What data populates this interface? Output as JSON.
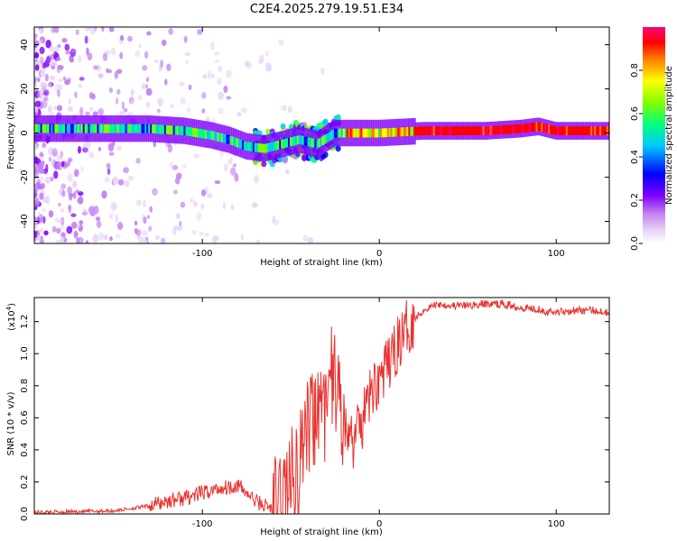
{
  "figure_title": "C2E4.2025.279.19.51.E34",
  "chart_data": [
    {
      "type": "heatmap",
      "title": "C2E4.2025.279.19.51.E34",
      "xlabel": "Height of straight line (km)",
      "ylabel": "Frequency (Hz)",
      "xlim": [
        -195,
        130
      ],
      "ylim": [
        -50,
        48
      ],
      "x_ticks": [
        -100,
        0,
        100
      ],
      "y_ticks": [
        -40,
        -20,
        0,
        20,
        40
      ],
      "colorbar": {
        "label": "Normalized spectral amplitude",
        "range": [
          0,
          1
        ],
        "ticks": [
          0.0,
          0.2,
          0.4,
          0.6,
          0.8
        ],
        "colormap": [
          "#ffffff",
          "#e8d5f7",
          "#c27ff0",
          "#8000ff",
          "#0000ff",
          "#00c8ff",
          "#00ff80",
          "#80ff00",
          "#ffff00",
          "#ff8000",
          "#ff0000",
          "#ff0080"
        ]
      },
      "ridge": {
        "x": [
          -195,
          -160,
          -130,
          -110,
          -95,
          -85,
          -75,
          -65,
          -55,
          -45,
          -35,
          -25,
          -15,
          0,
          25,
          60,
          80,
          90,
          100,
          130
        ],
        "freq_hz": [
          2,
          2,
          2,
          1,
          -1,
          -3,
          -6,
          -7,
          -5,
          -3,
          -5,
          0,
          0,
          0,
          1,
          1,
          2,
          3,
          1,
          1
        ]
      }
    },
    {
      "type": "line",
      "xlabel": "Height of straight line (km)",
      "ylabel": "SNR (10 * v/v)",
      "y_scale_label": "(x10",
      "y_scale_exponent": "4",
      "xlim": [
        -195,
        130
      ],
      "ylim": [
        0,
        1.35
      ],
      "x_ticks": [
        -100,
        0,
        100
      ],
      "y_ticks": [
        0.0,
        0.2,
        0.4,
        0.6,
        0.8,
        1.0,
        1.2
      ],
      "series": [
        {
          "name": "SNR",
          "color": "#e8322e",
          "x": [
            -195,
            -170,
            -150,
            -130,
            -120,
            -110,
            -100,
            -90,
            -80,
            -75,
            -70,
            -60,
            -55,
            -50,
            -45,
            -40,
            -35,
            -30,
            -27,
            -25,
            -22,
            -20,
            -15,
            -10,
            -5,
            0,
            5,
            10,
            15,
            20,
            25,
            30,
            35,
            40,
            50,
            60,
            70,
            80,
            90,
            96,
            100,
            110,
            120,
            130
          ],
          "y": [
            0.01,
            0.015,
            0.02,
            0.05,
            0.08,
            0.1,
            0.13,
            0.16,
            0.18,
            0.13,
            0.08,
            0.03,
            0.12,
            0.2,
            0.35,
            0.5,
            0.6,
            0.62,
            0.85,
            0.78,
            0.7,
            0.55,
            0.45,
            0.55,
            0.75,
            0.85,
            0.92,
            1.05,
            1.15,
            1.22,
            1.27,
            1.3,
            1.31,
            1.3,
            1.3,
            1.31,
            1.31,
            1.29,
            1.28,
            1.26,
            1.26,
            1.27,
            1.27,
            1.26
          ]
        }
      ]
    }
  ]
}
